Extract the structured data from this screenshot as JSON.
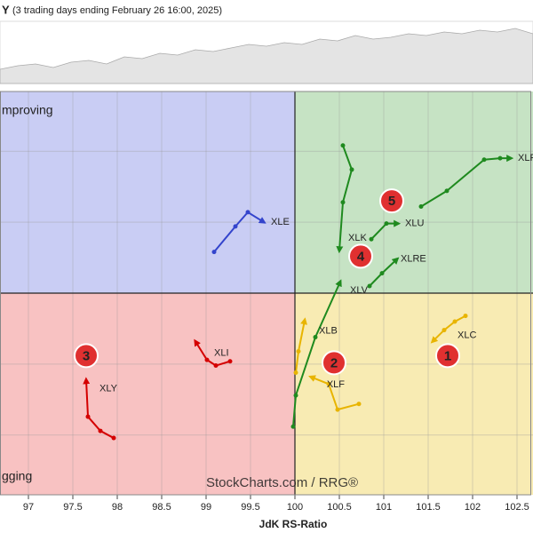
{
  "chart_data": {
    "type": "rrg",
    "title": "Y",
    "subtitle": "(3 trading days ending February 26 16:00, 2025)",
    "x_label": "JdK RS-Ratio",
    "watermark": "StockCharts.com / RRG®",
    "quadrant_labels": {
      "improving": "mproving",
      "lagging": "gging"
    },
    "quadrant_colors": {
      "improving": "#c9cdf4",
      "leading": "#c6e3c4",
      "weakening": "#f8ebb3",
      "lagging": "#f8c2c2"
    },
    "center": [
      100,
      100
    ],
    "xlim": [
      96.68,
      102.68
    ],
    "xticks": [
      97,
      97.5,
      98,
      98.5,
      99,
      99.5,
      100,
      100.5,
      101,
      101.5,
      102,
      102.5
    ],
    "ylim": [
      98.58,
      101.42
    ],
    "yticks": [
      99,
      99.5,
      100,
      100.5,
      101
    ],
    "grid": true,
    "series": [
      {
        "name": "XLP",
        "color": "#1f8a1f",
        "x": [
          101.42,
          101.71,
          102.13,
          102.31,
          102.43
        ],
        "values": [
          100.61,
          100.72,
          100.94,
          100.95,
          100.95
        ]
      },
      {
        "name": "XLU",
        "color": "#1f8a1f",
        "x": [
          100.86,
          101.03,
          101.16
        ],
        "values": [
          100.38,
          100.49,
          100.49
        ]
      },
      {
        "name": "XLK",
        "color": "#1f8a1f",
        "x": [
          100.54,
          100.64,
          100.54,
          100.5
        ],
        "values": [
          101.04,
          100.87,
          100.64,
          100.3
        ]
      },
      {
        "name": "XLRE",
        "color": "#1f8a1f",
        "x": [
          100.84,
          100.98,
          101.15
        ],
        "values": [
          100.05,
          100.14,
          100.24
        ]
      },
      {
        "name": "XLV",
        "color": "#1f8a1f",
        "x": [
          99.98,
          100.01,
          100.23,
          100.51
        ],
        "values": [
          99.06,
          99.28,
          99.69,
          100.08
        ]
      },
      {
        "name": "XLB",
        "color": "#e8b400",
        "x": [
          100.01,
          100.04,
          100.11
        ],
        "values": [
          99.44,
          99.59,
          99.81
        ]
      },
      {
        "name": "XLF",
        "color": "#e8b400",
        "x": [
          100.72,
          100.48,
          100.38,
          100.18
        ],
        "values": [
          99.22,
          99.18,
          99.36,
          99.41
        ]
      },
      {
        "name": "XLC",
        "color": "#e8b400",
        "x": [
          101.92,
          101.8,
          101.68,
          101.55
        ],
        "values": [
          99.84,
          99.8,
          99.74,
          99.66
        ]
      },
      {
        "name": "XLE",
        "color": "#3344cc",
        "x": [
          99.09,
          99.33,
          99.47,
          99.65
        ],
        "values": [
          100.29,
          100.47,
          100.57,
          100.5
        ]
      },
      {
        "name": "XLI",
        "color": "#d40000",
        "x": [
          99.27,
          99.11,
          99.01,
          98.88
        ],
        "values": [
          99.52,
          99.49,
          99.53,
          99.66
        ]
      },
      {
        "name": "XLY",
        "color": "#d40000",
        "x": [
          97.96,
          97.81,
          97.67,
          97.65
        ],
        "values": [
          98.98,
          99.03,
          99.13,
          99.39
        ]
      }
    ],
    "markers": [
      {
        "label": "1",
        "x": 101.72,
        "y": 99.56
      },
      {
        "label": "2",
        "x": 100.44,
        "y": 99.51
      },
      {
        "label": "3",
        "x": 97.65,
        "y": 99.56
      },
      {
        "label": "4",
        "x": 100.74,
        "y": 100.26
      },
      {
        "label": "5",
        "x": 101.09,
        "y": 100.65
      }
    ]
  }
}
